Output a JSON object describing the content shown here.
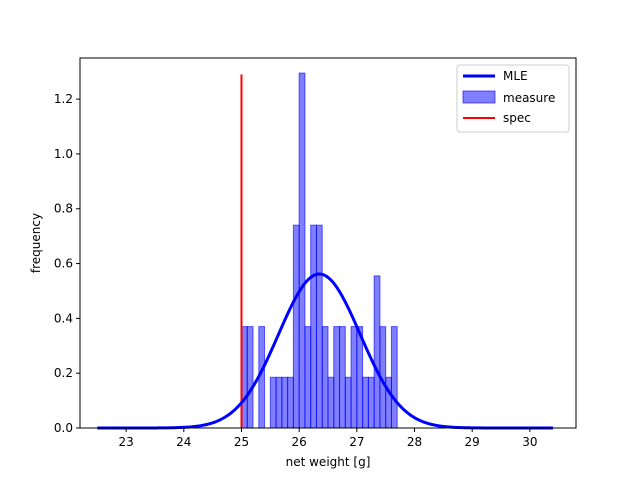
{
  "chart_data": {
    "type": "bar",
    "xlabel": "net weight [g]",
    "ylabel": "frequency",
    "xlim": [
      22.2,
      30.8
    ],
    "ylim": [
      0,
      1.35
    ],
    "xticks": [
      23,
      24,
      25,
      26,
      27,
      28,
      29,
      30
    ],
    "yticks": [
      0.0,
      0.2,
      0.4,
      0.6,
      0.8,
      1.0,
      1.2
    ],
    "grid": false,
    "legend_position": "top-right",
    "histogram": {
      "name": "measure",
      "color": "#0000ff",
      "bin_width": 0.1,
      "bins": [
        {
          "x0": 25.0,
          "value": 0.37
        },
        {
          "x0": 25.1,
          "value": 0.37
        },
        {
          "x0": 25.3,
          "value": 0.37
        },
        {
          "x0": 25.5,
          "value": 0.185
        },
        {
          "x0": 25.6,
          "value": 0.185
        },
        {
          "x0": 25.7,
          "value": 0.185
        },
        {
          "x0": 25.8,
          "value": 0.185
        },
        {
          "x0": 25.9,
          "value": 0.74
        },
        {
          "x0": 26.0,
          "value": 1.295
        },
        {
          "x0": 26.1,
          "value": 0.37
        },
        {
          "x0": 26.2,
          "value": 0.74
        },
        {
          "x0": 26.3,
          "value": 0.74
        },
        {
          "x0": 26.4,
          "value": 0.37
        },
        {
          "x0": 26.5,
          "value": 0.185
        },
        {
          "x0": 26.6,
          "value": 0.37
        },
        {
          "x0": 26.7,
          "value": 0.37
        },
        {
          "x0": 26.8,
          "value": 0.185
        },
        {
          "x0": 26.9,
          "value": 0.37
        },
        {
          "x0": 27.0,
          "value": 0.37
        },
        {
          "x0": 27.1,
          "value": 0.185
        },
        {
          "x0": 27.2,
          "value": 0.185
        },
        {
          "x0": 27.3,
          "value": 0.555
        },
        {
          "x0": 27.4,
          "value": 0.37
        },
        {
          "x0": 27.5,
          "value": 0.185
        },
        {
          "x0": 27.6,
          "value": 0.37
        }
      ]
    },
    "mle_curve": {
      "name": "MLE",
      "color": "#0000ff",
      "mean": 26.35,
      "std": 0.71,
      "x_range": [
        22.5,
        30.4
      ]
    },
    "spec_line": {
      "name": "spec",
      "color": "#ff0000",
      "x": 25.0,
      "y_range": [
        0,
        1.29
      ]
    },
    "legend": [
      "MLE",
      "measure",
      "spec"
    ]
  }
}
